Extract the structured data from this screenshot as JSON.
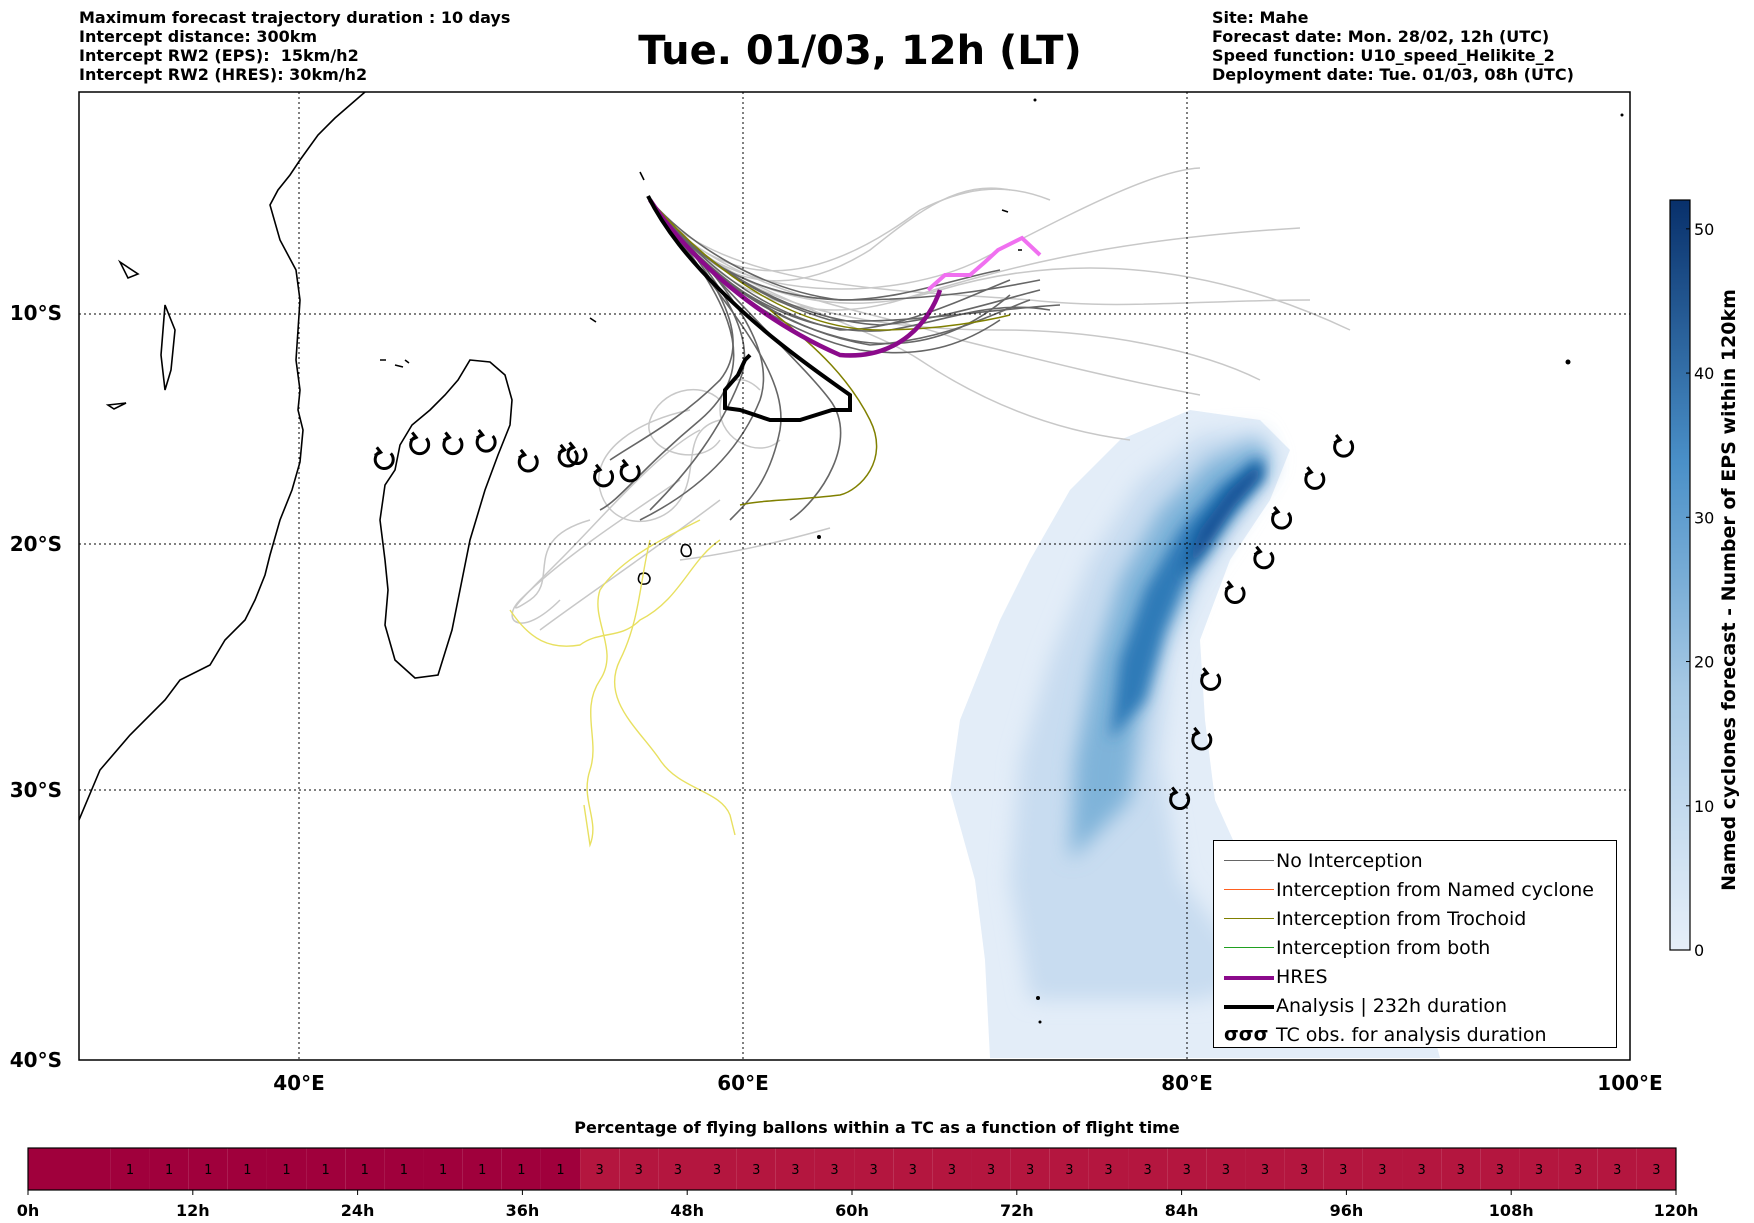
{
  "header_left": [
    "Maximum forecast trajectory duration : 10 days",
    "Intercept distance: 300km",
    "Intercept RW2 (EPS):  15km/h2",
    "Intercept RW2 (HRES): 30km/h2"
  ],
  "header_right": [
    "Site: Mahe",
    "Forecast date: Mon. 28/02, 12h (UTC)",
    "Speed function: U10_speed_Helikite_2",
    "Deployment date: Tue. 01/03, 08h (UTC)"
  ],
  "title": "Tue. 01/03, 12h (LT)",
  "map": {
    "lon_range": [
      30,
      100
    ],
    "lat_range": [
      -40,
      -1
    ],
    "lon_ticks": [
      "40°E",
      "60°E",
      "80°E",
      "100°E"
    ],
    "lat_ticks": [
      "10°S",
      "20°S",
      "30°S",
      "40°S"
    ],
    "colors": {
      "no_interception": "#666666",
      "named_cyclone": "#ff6020",
      "trochoid": "#808000",
      "both": "#20a020",
      "hres": "#8b0a8b",
      "analysis": "#000000",
      "faint_track": "#c8c8c8",
      "yellow_track": "#e8e060",
      "pink_track": "#f070f0"
    },
    "tc_obs_madagascar": [
      [
        43.8,
        -15.8
      ],
      [
        45.4,
        -15.2
      ],
      [
        46.9,
        -15.2
      ],
      [
        48.4,
        -15.1
      ],
      [
        50.3,
        -15.9
      ],
      [
        52.1,
        -15.7
      ],
      [
        52.5,
        -15.6
      ],
      [
        53.7,
        -16.5
      ],
      [
        54.9,
        -16.3
      ]
    ],
    "tc_obs_east": [
      [
        87.1,
        -15.3
      ],
      [
        85.8,
        -16.6
      ],
      [
        84.3,
        -18.2
      ],
      [
        83.5,
        -19.8
      ],
      [
        82.2,
        -21.2
      ],
      [
        81.1,
        -24.7
      ],
      [
        80.7,
        -27.1
      ],
      [
        79.7,
        -29.5
      ]
    ]
  },
  "colorbar": {
    "label": "Named cyclones forecast - Number of EPS within 120km",
    "ticks": [
      "0",
      "10",
      "20",
      "30",
      "40",
      "50"
    ],
    "max": 52,
    "color_low": "#e6eff9",
    "color_high": "#08306b"
  },
  "legend": [
    {
      "label": "No Interception",
      "type": "thin",
      "color": "#666666"
    },
    {
      "label": "Interception from Named cyclone",
      "type": "thin",
      "color": "#ff6020"
    },
    {
      "label": "Interception from Trochoid",
      "type": "thin",
      "color": "#808000"
    },
    {
      "label": "Interception from both",
      "type": "thin",
      "color": "#20a020"
    },
    {
      "label": "HRES",
      "type": "thick",
      "color": "#8b0a8b"
    },
    {
      "label": "Analysis | 232h duration",
      "type": "thick",
      "color": "#000000"
    },
    {
      "label": "TC obs. for analysis duration",
      "type": "symbol",
      "symbol": "σσσ"
    }
  ],
  "timebar": {
    "title": "Percentage of flying ballons within a TC as a function of flight time",
    "hours": 120,
    "ticks": [
      "0h",
      "12h",
      "24h",
      "36h",
      "48h",
      "60h",
      "72h",
      "84h",
      "96h",
      "108h",
      "120h"
    ],
    "first_segment_hours": 6,
    "values_per_3h": [
      "1",
      "1",
      "1",
      "1",
      "1",
      "1",
      "1",
      "1",
      "1",
      "1",
      "1",
      "1",
      "3",
      "3",
      "3",
      "3",
      "3",
      "3",
      "3",
      "3",
      "3",
      "3",
      "3",
      "3",
      "3",
      "3",
      "3",
      "3",
      "3",
      "3",
      "3",
      "3",
      "3",
      "3",
      "3",
      "3",
      "3",
      "3",
      "3",
      "3"
    ],
    "color_dark": "#a0003c",
    "color_main": "#b4163f"
  }
}
